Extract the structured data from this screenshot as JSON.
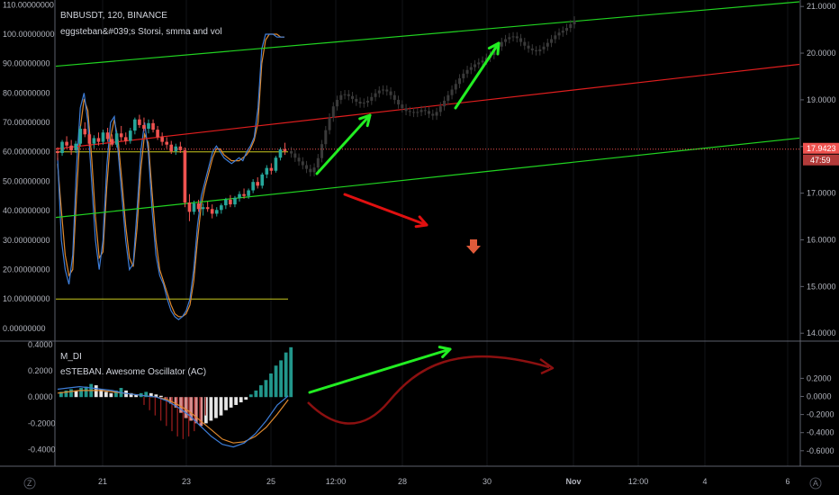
{
  "header": {
    "symbol_line": "BNBUSDT, 120, BINANCE",
    "indicator_line": "eggsteban&#039;s Storsi, smma and vol"
  },
  "lower_pane": {
    "label_1": "M_DI",
    "label_2": "eSTEBAN. Awesome Oscillator (AC)"
  },
  "price_tags": {
    "price": "17.9423",
    "countdown": "47:59"
  },
  "corner": {
    "left": "Z",
    "right": "A"
  },
  "colors": {
    "background": "#000000",
    "up_candle": "#26a69a",
    "down_candle": "#ef5350",
    "ghost_candle": "#3a3a3a",
    "channel_green": "#21d421",
    "channel_red": "#e01e1e",
    "arrow_green": "#22ee22",
    "arrow_red": "#e01010",
    "stoch_blue": "#3d7dd8",
    "stoch_orange": "#e08a2e",
    "level_yellow": "#c8c81e",
    "curve_dark_red": "#8b1010"
  },
  "chart_data": [
    {
      "type": "candlestick",
      "title": "BNBUSDT, 120, BINANCE",
      "x_tick_labels": [
        "21",
        "23",
        "25",
        "12:00",
        "28",
        "30",
        "Nov",
        "12:00",
        "4",
        "6"
      ],
      "right_axis_labels": [
        "21.0000",
        "20.0000",
        "19.0000",
        "18.0000",
        "17.0000",
        "16.0000",
        "15.0000",
        "14.0000"
      ],
      "left_axis_labels": [
        "110.00000000",
        "100.00000000",
        "90.00000000",
        "80.00000000",
        "70.00000000",
        "60.00000000",
        "50.00000000",
        "40.00000000",
        "30.00000000",
        "20.00000000",
        "10.00000000",
        "0.00000000"
      ],
      "right_ylim": [
        13.85,
        21.1
      ],
      "left_ylim": [
        -4,
        111
      ],
      "last_price": 17.9423,
      "stoch_levels": [
        60,
        10
      ],
      "candles_ohlc": [
        [
          17.9,
          17.98,
          17.7,
          17.86
        ],
        [
          17.86,
          18.14,
          17.8,
          18.1
        ],
        [
          18.1,
          18.22,
          17.96,
          18.02
        ],
        [
          18.02,
          18.14,
          17.82,
          17.92
        ],
        [
          17.92,
          18.12,
          17.86,
          18.06
        ],
        [
          18.06,
          18.44,
          18.0,
          18.38
        ],
        [
          18.38,
          18.52,
          18.2,
          18.26
        ],
        [
          18.26,
          18.32,
          18.0,
          18.06
        ],
        [
          18.06,
          18.24,
          17.96,
          18.18
        ],
        [
          18.18,
          18.3,
          18.02,
          18.1
        ],
        [
          18.1,
          18.36,
          18.04,
          18.3
        ],
        [
          18.3,
          18.4,
          18.1,
          18.16
        ],
        [
          18.16,
          18.26,
          18.0,
          18.04
        ],
        [
          18.04,
          18.34,
          17.98,
          18.28
        ],
        [
          18.28,
          18.44,
          18.12,
          18.2
        ],
        [
          18.2,
          18.3,
          18.04,
          18.12
        ],
        [
          18.12,
          18.4,
          18.06,
          18.34
        ],
        [
          18.34,
          18.62,
          18.26,
          18.58
        ],
        [
          18.58,
          18.68,
          18.4,
          18.46
        ],
        [
          18.46,
          18.62,
          18.32,
          18.38
        ],
        [
          18.38,
          18.58,
          18.28,
          18.5
        ],
        [
          18.5,
          18.58,
          18.3,
          18.36
        ],
        [
          18.36,
          18.44,
          18.14,
          18.2
        ],
        [
          18.2,
          18.3,
          18.02,
          18.1
        ],
        [
          18.1,
          18.2,
          17.96,
          18.04
        ],
        [
          18.04,
          18.12,
          17.84,
          17.9
        ],
        [
          17.9,
          18.06,
          17.82,
          18.0
        ],
        [
          18.0,
          18.1,
          17.86,
          17.92
        ],
        [
          17.92,
          17.98,
          16.7,
          16.8
        ],
        [
          16.8,
          16.98,
          16.4,
          16.6
        ],
        [
          16.6,
          16.84,
          16.54,
          16.78
        ],
        [
          16.78,
          16.86,
          16.6,
          16.66
        ],
        [
          16.66,
          16.78,
          16.52,
          16.7
        ],
        [
          16.7,
          16.82,
          16.6,
          16.66
        ],
        [
          16.66,
          16.76,
          16.46,
          16.56
        ],
        [
          16.56,
          16.7,
          16.5,
          16.64
        ],
        [
          16.64,
          16.78,
          16.56,
          16.74
        ],
        [
          16.74,
          16.9,
          16.66,
          16.86
        ],
        [
          16.86,
          16.96,
          16.7,
          16.76
        ],
        [
          16.76,
          16.94,
          16.7,
          16.9
        ],
        [
          16.9,
          17.04,
          16.82,
          16.98
        ],
        [
          16.98,
          17.1,
          16.88,
          16.94
        ],
        [
          16.94,
          17.1,
          16.88,
          17.06
        ],
        [
          17.06,
          17.3,
          17.0,
          17.24
        ],
        [
          17.24,
          17.34,
          17.1,
          17.16
        ],
        [
          17.16,
          17.44,
          17.1,
          17.4
        ],
        [
          17.4,
          17.6,
          17.32,
          17.54
        ],
        [
          17.54,
          17.64,
          17.4,
          17.48
        ],
        [
          17.48,
          17.8,
          17.44,
          17.76
        ],
        [
          17.76,
          17.98,
          17.7,
          17.94
        ],
        [
          17.94,
          18.08,
          17.82,
          17.9
        ]
      ],
      "projected_ghost_closes": [
        17.85,
        17.76,
        17.68,
        17.6,
        17.52,
        17.45,
        17.55,
        17.75,
        18.05,
        18.35,
        18.62,
        18.86,
        19.0,
        19.1,
        19.12,
        19.08,
        19.02,
        18.96,
        18.92,
        18.94,
        18.98,
        19.06,
        19.14,
        19.2,
        19.22,
        19.18,
        19.1,
        19.0,
        18.9,
        18.82,
        18.76,
        18.74,
        18.72,
        18.74,
        18.78,
        18.76,
        18.7,
        18.66,
        18.74,
        18.86,
        18.98,
        19.1,
        19.22,
        19.34,
        19.46,
        19.56,
        19.64,
        19.7,
        19.76,
        19.8,
        19.84,
        19.9,
        19.96,
        20.04,
        20.14,
        20.24,
        20.3,
        20.34,
        20.36,
        20.32,
        20.24,
        20.16,
        20.1,
        20.06,
        20.04,
        20.08,
        20.14,
        20.22,
        20.3,
        20.38,
        20.44,
        20.48,
        20.54,
        20.62,
        20.7
      ],
      "stoch_k": [
        58,
        30,
        20,
        15,
        25,
        55,
        75,
        80,
        70,
        50,
        30,
        20,
        30,
        55,
        70,
        72,
        60,
        45,
        30,
        20,
        22,
        40,
        60,
        70,
        60,
        40,
        25,
        18,
        15,
        10,
        6,
        4,
        3,
        4,
        6,
        10,
        20,
        35,
        45,
        50,
        55,
        60,
        62,
        60,
        58,
        57,
        56,
        57,
        58,
        57,
        60,
        62,
        65,
        75,
        95,
        100,
        100,
        100,
        99,
        99,
        99
      ],
      "stoch_d": [
        56,
        40,
        25,
        18,
        20,
        45,
        68,
        78,
        74,
        58,
        38,
        24,
        26,
        48,
        65,
        71,
        64,
        50,
        35,
        24,
        21,
        34,
        54,
        66,
        63,
        46,
        30,
        20,
        16,
        12,
        8,
        5,
        4,
        4,
        5,
        8,
        16,
        30,
        42,
        48,
        53,
        58,
        61,
        61,
        59,
        58,
        57,
        57,
        57,
        58,
        59,
        61,
        64,
        70,
        90,
        98,
        100,
        100,
        100,
        99,
        99
      ]
    },
    {
      "type": "bar",
      "title": "eSTEBAN. Awesome Oscillator (AC)",
      "ylabel_left": "M_DI",
      "left_axis_labels": [
        "0.4000",
        "0.2000",
        "0.0000",
        "-0.2000",
        "-0.4000"
      ],
      "right_axis_labels": [
        "0.2000",
        "0.0000",
        "-0.2000",
        "-0.4000",
        "-0.6000"
      ],
      "ylim": [
        -0.52,
        0.42
      ],
      "histogram": [
        0.04,
        0.05,
        0.06,
        0.05,
        0.07,
        0.08,
        0.1,
        0.09,
        0.06,
        0.04,
        0.03,
        0.05,
        0.07,
        0.05,
        0.03,
        0.02,
        0.03,
        0.04,
        0.03,
        0.02,
        0.01,
        -0.02,
        -0.05,
        -0.08,
        -0.12,
        -0.16,
        -0.18,
        -0.2,
        -0.22,
        -0.2,
        -0.18,
        -0.16,
        -0.14,
        -0.1,
        -0.08,
        -0.06,
        -0.04,
        -0.02,
        0.02,
        0.05,
        0.09,
        0.13,
        0.18,
        0.24,
        0.28,
        0.34,
        0.38
      ],
      "histogram_extra_red": [
        -0.06,
        -0.1,
        -0.14,
        -0.18,
        -0.22,
        -0.26,
        -0.3,
        -0.32,
        -0.3,
        -0.26,
        -0.2,
        -0.14
      ],
      "line_blue": [
        0.06,
        0.07,
        0.08,
        0.07,
        0.06,
        0.05,
        0.03,
        0.02,
        0.01,
        0.0,
        -0.03,
        -0.08,
        -0.14,
        -0.22,
        -0.3,
        -0.36,
        -0.38,
        -0.35,
        -0.28,
        -0.18,
        -0.06,
        0.01
      ],
      "line_orange": [
        0.03,
        0.04,
        0.05,
        0.05,
        0.05,
        0.04,
        0.03,
        0.02,
        0.01,
        0.0,
        -0.02,
        -0.06,
        -0.11,
        -0.18,
        -0.25,
        -0.32,
        -0.35,
        -0.34,
        -0.3,
        -0.23,
        -0.13,
        -0.02
      ]
    }
  ]
}
